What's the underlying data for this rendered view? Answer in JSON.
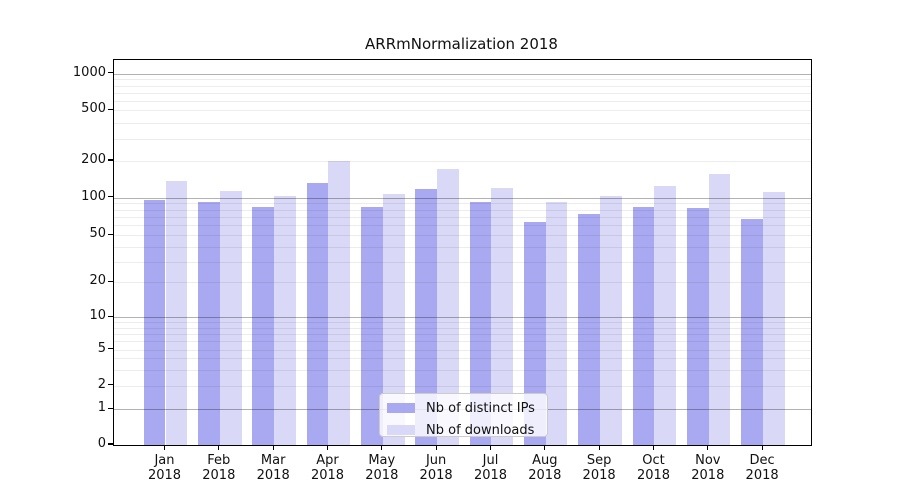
{
  "title": "ARRmNormalization 2018",
  "legend": {
    "items": [
      {
        "label": "Nb of distinct IPs",
        "color": "#a9a9f1"
      },
      {
        "label": "Nb of downloads",
        "color": "#d9d9f7"
      }
    ]
  },
  "chart_data": {
    "type": "bar",
    "title": "ARRmNormalization 2018",
    "categories": [
      "Jan",
      "Feb",
      "Mar",
      "Apr",
      "May",
      "Jun",
      "Jul",
      "Aug",
      "Sep",
      "Oct",
      "Nov",
      "Dec"
    ],
    "x_tick_year": "2018",
    "series": [
      {
        "name": "Nb of distinct IPs",
        "color": "#a9a9f1",
        "values": [
          96,
          93,
          84,
          131,
          84,
          117,
          93,
          64,
          74,
          85,
          82,
          67
        ]
      },
      {
        "name": "Nb of downloads",
        "color": "#d9d9f7",
        "values": [
          136,
          114,
          103,
          200,
          107,
          171,
          120,
          92,
          104,
          124,
          157,
          111
        ]
      }
    ],
    "xlabel": "",
    "ylabel": "",
    "y_scale": "symlog",
    "y_ticks": [
      0,
      1,
      2,
      5,
      10,
      20,
      50,
      100,
      200,
      500,
      1000
    ],
    "ylim": [
      0,
      1300
    ],
    "grid": "horizontal; darker lines at 1, 10, 100, 1000; faint minor lines between",
    "legend_position": "inside plot, lower center",
    "bar_group": "two bars per month, side by side"
  },
  "colors": {
    "major_gridline": "#b3b3b3",
    "minor_gridline": "#ebebeb",
    "axis": "#000000",
    "background": "#ffffff"
  }
}
